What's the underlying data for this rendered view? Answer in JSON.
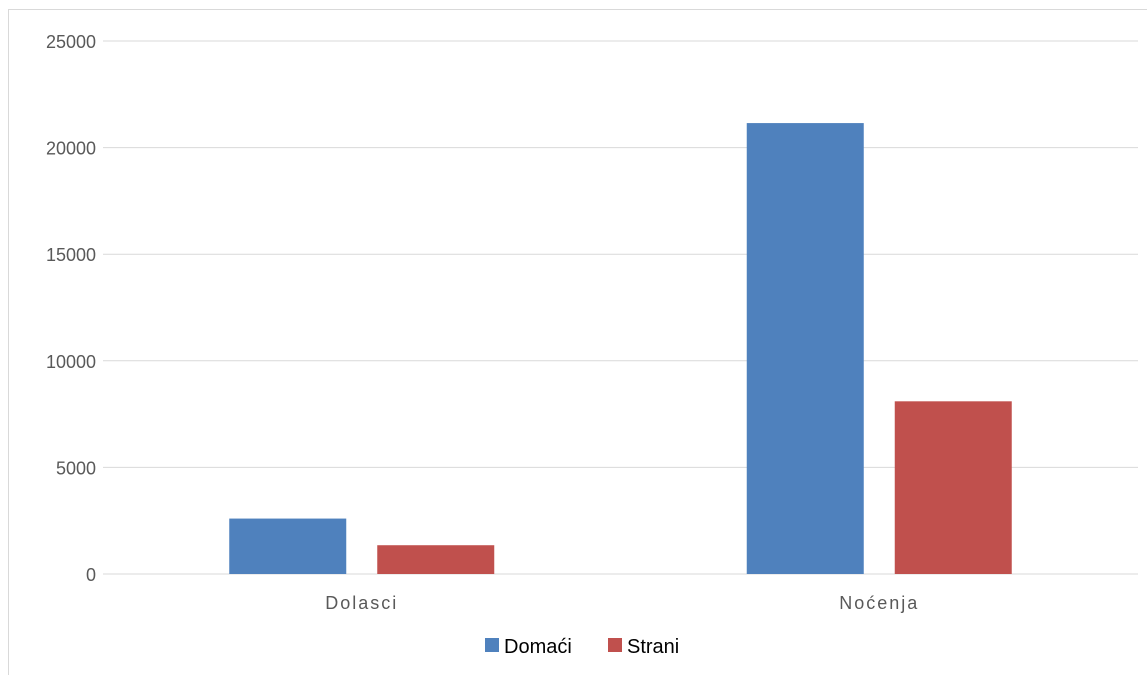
{
  "chart_data": {
    "type": "bar",
    "categories": [
      "Dolasci",
      "Noćenja"
    ],
    "series": [
      {
        "name": "Domaći",
        "values": [
          2600,
          21150
        ],
        "color": "#4f81bd"
      },
      {
        "name": "Strani",
        "values": [
          1350,
          8100
        ],
        "color": "#c0504d"
      }
    ],
    "ylim": [
      0,
      25000
    ],
    "yticks": [
      "0",
      "5000",
      "10000",
      "15000",
      "20000",
      "25000"
    ],
    "grid": true,
    "legend_position": "bottom"
  }
}
